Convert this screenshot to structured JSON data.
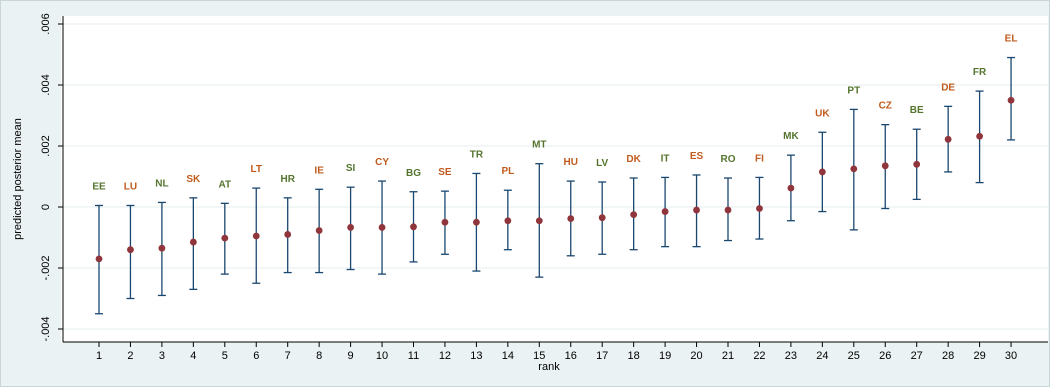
{
  "chart_data": {
    "type": "scatter",
    "xlabel": "rank",
    "ylabel": "predicted posterior mean",
    "xlim": [
      0,
      30
    ],
    "ylim": [
      -0.0045,
      0.006
    ],
    "grid": true,
    "x_ticks": [
      "1",
      "2",
      "3",
      "4",
      "5",
      "6",
      "7",
      "8",
      "9",
      "10",
      "11",
      "12",
      "13",
      "14",
      "15",
      "16",
      "17",
      "18",
      "19",
      "20",
      "21",
      "22",
      "23",
      "24",
      "25",
      "26",
      "27",
      "28",
      "29",
      "30"
    ],
    "y_ticks": [
      {
        "value": -0.004,
        "label": "-.004"
      },
      {
        "value": -0.002,
        "label": "-.002"
      },
      {
        "value": 0,
        "label": "0"
      },
      {
        "value": 0.002,
        "label": ".002"
      },
      {
        "value": 0.004,
        "label": ".004"
      },
      {
        "value": 0.006,
        "label": ".006"
      }
    ],
    "points": [
      {
        "rank": 1,
        "country": "EE",
        "mean": -0.0017,
        "low": -0.0035,
        "high": 5e-05
      },
      {
        "rank": 2,
        "country": "LU",
        "mean": -0.0014,
        "low": -0.003,
        "high": 5e-05
      },
      {
        "rank": 3,
        "country": "NL",
        "mean": -0.00135,
        "low": -0.0029,
        "high": 0.00015
      },
      {
        "rank": 4,
        "country": "SK",
        "mean": -0.00115,
        "low": -0.0027,
        "high": 0.0003
      },
      {
        "rank": 5,
        "country": "AT",
        "mean": -0.00102,
        "low": -0.0022,
        "high": 0.00012
      },
      {
        "rank": 6,
        "country": "LT",
        "mean": -0.00095,
        "low": -0.0025,
        "high": 0.00062
      },
      {
        "rank": 7,
        "country": "HR",
        "mean": -0.0009,
        "low": -0.00215,
        "high": 0.0003
      },
      {
        "rank": 8,
        "country": "IE",
        "mean": -0.00077,
        "low": -0.00215,
        "high": 0.00058
      },
      {
        "rank": 9,
        "country": "SI",
        "mean": -0.00067,
        "low": -0.00205,
        "high": 0.00065
      },
      {
        "rank": 10,
        "country": "CY",
        "mean": -0.00067,
        "low": -0.0022,
        "high": 0.00085
      },
      {
        "rank": 11,
        "country": "BG",
        "mean": -0.00065,
        "low": -0.0018,
        "high": 0.0005
      },
      {
        "rank": 12,
        "country": "SE",
        "mean": -0.0005,
        "low": -0.00155,
        "high": 0.00052
      },
      {
        "rank": 13,
        "country": "TR",
        "mean": -0.0005,
        "low": -0.0021,
        "high": 0.0011
      },
      {
        "rank": 14,
        "country": "PL",
        "mean": -0.00045,
        "low": -0.0014,
        "high": 0.00055
      },
      {
        "rank": 15,
        "country": "MT",
        "mean": -0.00045,
        "low": -0.0023,
        "high": 0.00142
      },
      {
        "rank": 16,
        "country": "HU",
        "mean": -0.00038,
        "low": -0.0016,
        "high": 0.00085
      },
      {
        "rank": 17,
        "country": "LV",
        "mean": -0.00035,
        "low": -0.00155,
        "high": 0.00082
      },
      {
        "rank": 18,
        "country": "DK",
        "mean": -0.00025,
        "low": -0.0014,
        "high": 0.00095
      },
      {
        "rank": 19,
        "country": "IT",
        "mean": -0.00015,
        "low": -0.0013,
        "high": 0.00097
      },
      {
        "rank": 20,
        "country": "ES",
        "mean": -0.0001,
        "low": -0.0013,
        "high": 0.00105
      },
      {
        "rank": 21,
        "country": "RO",
        "mean": -0.0001,
        "low": -0.0011,
        "high": 0.00095
      },
      {
        "rank": 22,
        "country": "FI",
        "mean": -5e-05,
        "low": -0.00105,
        "high": 0.00097
      },
      {
        "rank": 23,
        "country": "MK",
        "mean": 0.00062,
        "low": -0.00045,
        "high": 0.0017
      },
      {
        "rank": 24,
        "country": "UK",
        "mean": 0.00115,
        "low": -0.00015,
        "high": 0.00245
      },
      {
        "rank": 25,
        "country": "PT",
        "mean": 0.00125,
        "low": -0.00075,
        "high": 0.0032
      },
      {
        "rank": 26,
        "country": "CZ",
        "mean": 0.00135,
        "low": -5e-05,
        "high": 0.0027
      },
      {
        "rank": 27,
        "country": "BE",
        "mean": 0.0014,
        "low": 0.00025,
        "high": 0.00255
      },
      {
        "rank": 28,
        "country": "DE",
        "mean": 0.00222,
        "low": 0.00115,
        "high": 0.0033
      },
      {
        "rank": 29,
        "country": "FR",
        "mean": 0.00232,
        "low": 0.0008,
        "high": 0.0038
      },
      {
        "rank": 30,
        "country": "EL",
        "mean": 0.0035,
        "low": 0.0022,
        "high": 0.0049
      }
    ]
  },
  "colors": {
    "background": "#eaf2f3",
    "plot_background": "#ffffff",
    "grid": "#e6ecef",
    "axis": "#000000",
    "error_bar": "#1a476f",
    "marker": "#90353b",
    "label_orange": "#c15b1e",
    "label_green": "#55752f"
  }
}
